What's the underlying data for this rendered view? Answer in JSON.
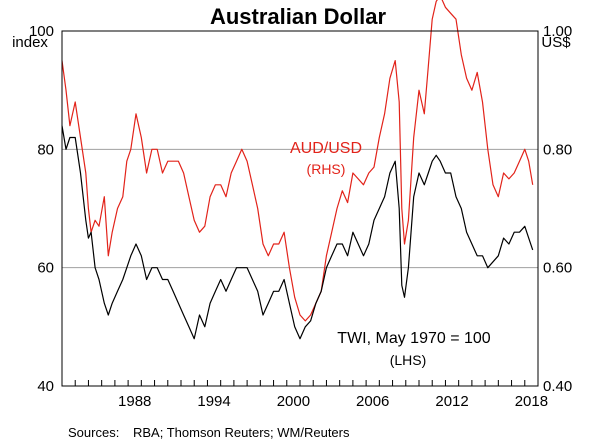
{
  "chart_data": {
    "type": "line",
    "title": "Australian Dollar",
    "left_axis": {
      "unit": "index",
      "ylim": [
        40,
        100
      ],
      "ticks": [
        100,
        80,
        60,
        40
      ]
    },
    "right_axis": {
      "unit": "US$",
      "ylim": [
        0.4,
        1.0
      ],
      "ticks": [
        "1.00",
        "0.80",
        "0.60",
        "0.40"
      ]
    },
    "xlim": [
      1983.0,
      2019.0
    ],
    "x_ticks": [
      "1988",
      "1994",
      "2000",
      "2006",
      "2012",
      "2018"
    ],
    "grid": true,
    "series": [
      {
        "name": "AUD/USD",
        "axis": "right",
        "color": "#e2231a",
        "x": [
          1983.0,
          1983.3,
          1983.6,
          1984.0,
          1984.4,
          1984.8,
          1985.0,
          1985.2,
          1985.5,
          1985.8,
          1986.2,
          1986.5,
          1986.8,
          1987.2,
          1987.6,
          1987.9,
          1988.2,
          1988.6,
          1989.0,
          1989.4,
          1989.8,
          1990.2,
          1990.6,
          1991.0,
          1991.4,
          1991.8,
          1992.2,
          1992.6,
          1993.0,
          1993.4,
          1993.8,
          1994.2,
          1994.6,
          1995.0,
          1995.4,
          1995.8,
          1996.2,
          1996.6,
          1997.0,
          1997.4,
          1997.8,
          1998.2,
          1998.6,
          1999.0,
          1999.4,
          1999.8,
          2000.2,
          2000.6,
          2001.0,
          2001.4,
          2001.8,
          2002.2,
          2002.6,
          2003.0,
          2003.4,
          2003.8,
          2004.2,
          2004.6,
          2005.0,
          2005.4,
          2005.8,
          2006.2,
          2006.6,
          2007.0,
          2007.4,
          2007.8,
          2008.2,
          2008.5,
          2008.7,
          2008.9,
          2009.2,
          2009.6,
          2010.0,
          2010.4,
          2010.7,
          2011.0,
          2011.3,
          2011.6,
          2012.0,
          2012.4,
          2012.8,
          2013.2,
          2013.6,
          2014.0,
          2014.4,
          2014.8,
          2015.2,
          2015.6,
          2016.0,
          2016.4,
          2016.8,
          2017.2,
          2017.6,
          2018.0,
          2018.3,
          2018.6
        ],
        "y": [
          0.95,
          0.9,
          0.84,
          0.88,
          0.82,
          0.76,
          0.7,
          0.66,
          0.68,
          0.67,
          0.72,
          0.62,
          0.66,
          0.7,
          0.72,
          0.78,
          0.8,
          0.86,
          0.82,
          0.76,
          0.8,
          0.8,
          0.76,
          0.78,
          0.78,
          0.78,
          0.76,
          0.72,
          0.68,
          0.66,
          0.67,
          0.72,
          0.74,
          0.74,
          0.72,
          0.76,
          0.78,
          0.8,
          0.78,
          0.74,
          0.7,
          0.64,
          0.62,
          0.64,
          0.64,
          0.66,
          0.6,
          0.55,
          0.52,
          0.51,
          0.52,
          0.54,
          0.56,
          0.62,
          0.66,
          0.7,
          0.73,
          0.71,
          0.76,
          0.75,
          0.74,
          0.76,
          0.77,
          0.82,
          0.86,
          0.92,
          0.95,
          0.88,
          0.7,
          0.64,
          0.68,
          0.82,
          0.9,
          0.86,
          0.94,
          1.02,
          1.05,
          1.06,
          1.04,
          1.03,
          1.02,
          0.96,
          0.92,
          0.9,
          0.93,
          0.88,
          0.8,
          0.74,
          0.72,
          0.76,
          0.75,
          0.76,
          0.78,
          0.8,
          0.78,
          0.74
        ]
      },
      {
        "name": "TWI, May 1970 = 100",
        "axis": "left",
        "color": "#000000",
        "x": [
          1983.0,
          1983.3,
          1983.6,
          1984.0,
          1984.4,
          1984.8,
          1985.0,
          1985.2,
          1985.5,
          1985.8,
          1986.2,
          1986.5,
          1986.8,
          1987.2,
          1987.6,
          1987.9,
          1988.2,
          1988.6,
          1989.0,
          1989.4,
          1989.8,
          1990.2,
          1990.6,
          1991.0,
          1991.4,
          1991.8,
          1992.2,
          1992.6,
          1993.0,
          1993.4,
          1993.8,
          1994.2,
          1994.6,
          1995.0,
          1995.4,
          1995.8,
          1996.2,
          1996.6,
          1997.0,
          1997.4,
          1997.8,
          1998.2,
          1998.6,
          1999.0,
          1999.4,
          1999.8,
          2000.2,
          2000.6,
          2001.0,
          2001.4,
          2001.8,
          2002.2,
          2002.6,
          2003.0,
          2003.4,
          2003.8,
          2004.2,
          2004.6,
          2005.0,
          2005.4,
          2005.8,
          2006.2,
          2006.6,
          2007.0,
          2007.4,
          2007.8,
          2008.2,
          2008.5,
          2008.7,
          2008.9,
          2009.2,
          2009.6,
          2010.0,
          2010.4,
          2010.7,
          2011.0,
          2011.3,
          2011.6,
          2012.0,
          2012.4,
          2012.8,
          2013.2,
          2013.6,
          2014.0,
          2014.4,
          2014.8,
          2015.2,
          2015.6,
          2016.0,
          2016.4,
          2016.8,
          2017.2,
          2017.6,
          2018.0,
          2018.3,
          2018.6
        ],
        "y": [
          84,
          80,
          82,
          82,
          76,
          68,
          65,
          66,
          60,
          58,
          54,
          52,
          54,
          56,
          58,
          60,
          62,
          64,
          62,
          58,
          60,
          60,
          58,
          58,
          56,
          54,
          52,
          50,
          48,
          52,
          50,
          54,
          56,
          58,
          56,
          58,
          60,
          60,
          60,
          58,
          56,
          52,
          54,
          56,
          56,
          58,
          54,
          50,
          48,
          50,
          51,
          54,
          56,
          60,
          62,
          64,
          64,
          62,
          66,
          64,
          62,
          64,
          68,
          70,
          72,
          76,
          78,
          70,
          57,
          55,
          60,
          72,
          76,
          74,
          76,
          78,
          79,
          78,
          76,
          76,
          72,
          70,
          66,
          64,
          62,
          62,
          60,
          61,
          62,
          65,
          64,
          66,
          66,
          67,
          65,
          63
        ]
      }
    ],
    "annotations": [
      {
        "text": "AUD/USD",
        "color": "#e2231a"
      },
      {
        "text": "(RHS)",
        "color": "#e2231a"
      },
      {
        "text": "TWI, May 1970 = 100",
        "color": "#000000"
      },
      {
        "text": "(LHS)",
        "color": "#000000"
      }
    ],
    "source_label": "Sources:",
    "source_text": "RBA; Thomson Reuters; WM/Reuters"
  }
}
